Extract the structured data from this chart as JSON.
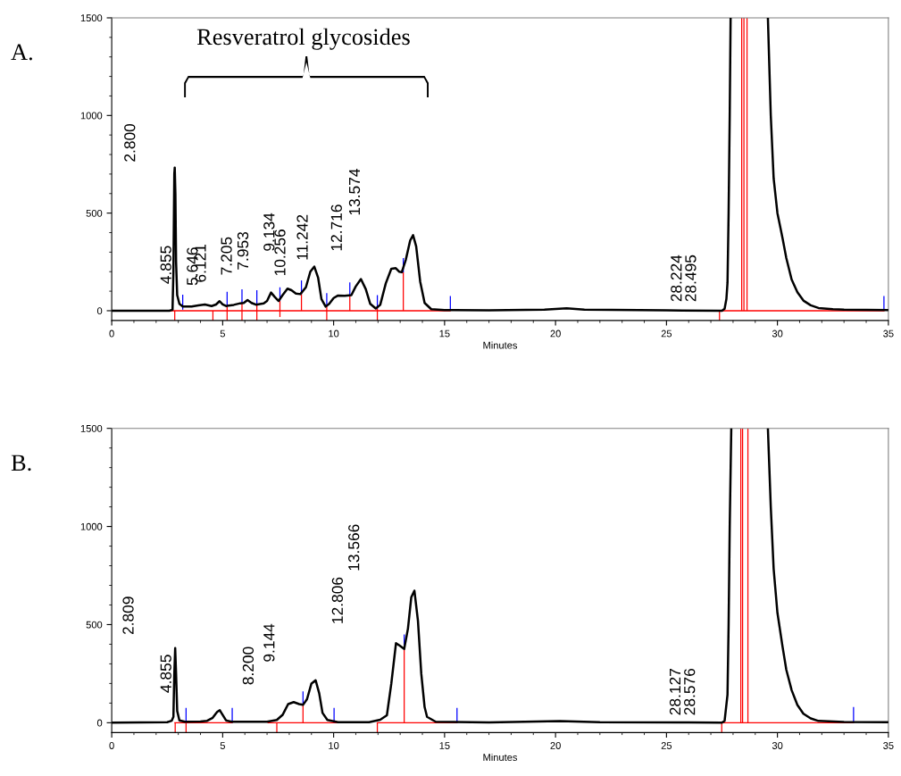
{
  "chart_data": [
    {
      "type": "line",
      "title": "A.",
      "xlabel": "Minutes",
      "xlim": [
        0,
        35
      ],
      "xticks": [
        0,
        5,
        10,
        15,
        20,
        25,
        30,
        35
      ],
      "ylim": [
        -50,
        1500
      ],
      "yticks": [
        0,
        500,
        1000,
        1500
      ],
      "grid": false,
      "legend": false,
      "marker": "none",
      "line_style": "solid",
      "series": [
        {
          "color": "#ff0000",
          "x": [
            2.0,
            15.25,
            null,
            27.39,
            34.8
          ],
          "values": [
            0,
            0,
            null,
            0,
            0
          ]
        },
        {
          "type": "bar",
          "color": "#ff0000",
          "x": [
            2.84,
            4.56,
            5.2,
            5.87,
            6.54,
            7.58,
            8.55,
            9.69,
            10.73,
            11.97,
            13.14,
            27.39,
            28.39,
            28.49,
            28.63
          ],
          "base": [
            -50,
            -50,
            -50,
            -50,
            -50,
            -32,
            0,
            -50,
            0,
            -50,
            0,
            -50,
            0,
            0,
            0
          ],
          "values": [
            50,
            50,
            71,
            88,
            85,
            82,
            85,
            71,
            76,
            61,
            197,
            50,
            1500,
            1500,
            1500
          ]
        },
        {
          "type": "bar",
          "color": "#0000ff",
          "x": [
            3.2,
            5.2,
            5.87,
            6.54,
            7.58,
            8.55,
            9.69,
            10.73,
            11.97,
            13.14,
            15.26,
            34.8
          ],
          "base": [
            6,
            21,
            38,
            35,
            50,
            85,
            21,
            76,
            11,
            197,
            0,
            0
          ],
          "values": [
            76,
            76,
            72,
            70,
            70,
            70,
            69,
            69,
            69,
            73,
            75,
            75
          ]
        },
        {
          "color": "#000000",
          "x": [
            0,
            2.6,
            2.74,
            2.78,
            2.82,
            2.84,
            2.87,
            2.9,
            2.95,
            3.05,
            3.2,
            3.6,
            3.9,
            4.2,
            4.5,
            4.7,
            4.86,
            5.0,
            5.15,
            5.5,
            5.79,
            5.95,
            6.12,
            6.3,
            6.5,
            6.85,
            7.0,
            7.18,
            7.35,
            7.52,
            7.7,
            7.92,
            8.1,
            8.3,
            8.5,
            8.75,
            8.95,
            9.13,
            9.3,
            9.45,
            9.64,
            9.8,
            10.0,
            10.2,
            10.5,
            10.8,
            11.0,
            11.23,
            11.45,
            11.65,
            11.9,
            12.1,
            12.35,
            12.6,
            12.8,
            12.95,
            13.07,
            13.25,
            13.45,
            13.58,
            13.72,
            13.9,
            14.1,
            14.4,
            15.0,
            17.0,
            19.5,
            20.5,
            21.3,
            25.0,
            27.5,
            27.62,
            27.7,
            27.75,
            27.8,
            27.85,
            27.89,
            28.5,
            29.57,
            29.7,
            29.83,
            30.0,
            30.23,
            30.4,
            30.64,
            30.9,
            31.17,
            31.5,
            31.85,
            32.5,
            33.0,
            34.0,
            35.0
          ],
          "values": [
            0,
            0,
            5,
            200,
            700,
            733,
            600,
            250,
            80,
            35,
            22,
            22,
            27,
            32,
            24,
            32,
            49,
            32,
            24,
            30,
            38,
            40,
            55,
            40,
            31,
            38,
            50,
            93,
            70,
            50,
            80,
            113,
            105,
            88,
            85,
            120,
            200,
            226,
            170,
            60,
            21,
            35,
            65,
            78,
            76,
            80,
            125,
            162,
            110,
            35,
            11,
            30,
            140,
            215,
            218,
            200,
            197,
            260,
            360,
            387,
            330,
            150,
            40,
            8,
            3,
            2,
            5,
            12,
            5,
            2,
            0,
            10,
            60,
            143,
            500,
            1000,
            1500,
            null,
            1500,
            1000,
            677,
            500,
            372,
            270,
            160,
            95,
            52,
            28,
            14,
            8,
            5,
            4,
            3
          ]
        }
      ],
      "annotations": [
        "2.800",
        "4.855",
        "5.646",
        "6.121",
        "7.205",
        "7.953",
        "9.134",
        "10.256",
        "11.242",
        "12.716",
        "13.574",
        "28.224",
        "28.495",
        "Resveratrol glycosides"
      ]
    },
    {
      "type": "line",
      "title": "B.",
      "xlabel": "Minutes",
      "xlim": [
        0,
        35
      ],
      "xticks": [
        0,
        5,
        10,
        15,
        20,
        25,
        30,
        35
      ],
      "ylim": [
        -50,
        1500
      ],
      "yticks": [
        0,
        500,
        1000,
        1500
      ],
      "grid": false,
      "legend": false,
      "marker": "none",
      "line_style": "solid",
      "series": [
        {
          "color": "#ff0000",
          "x": [
            2.85,
            5.43,
            null,
            7.05,
            11.0,
            null,
            11.97,
            15.56,
            null,
            27.49,
            33.43
          ],
          "values": [
            0,
            0,
            null,
            0,
            0,
            null,
            0,
            0,
            null,
            0,
            0
          ]
        },
        {
          "type": "bar",
          "color": "#ff0000",
          "x": [
            2.86,
            3.35,
            7.44,
            8.62,
            11.97,
            13.18,
            27.49,
            28.35,
            28.43,
            28.67
          ],
          "base": [
            -50,
            -50,
            -50,
            0,
            -50,
            0,
            -50,
            0,
            0,
            0
          ],
          "values": [
            50,
            50,
            50,
            91,
            50,
            376,
            50,
            1500,
            1500,
            1500
          ]
        },
        {
          "type": "bar",
          "color": "#0000ff",
          "x": [
            3.35,
            5.43,
            8.62,
            10.02,
            13.18,
            15.56,
            33.43
          ],
          "base": [
            0,
            0,
            91,
            0,
            376,
            0,
            0
          ],
          "values": [
            75,
            75,
            69,
            75,
            74,
            75,
            80
          ]
        },
        {
          "color": "#000000",
          "x": [
            0,
            2.5,
            2.7,
            2.78,
            2.82,
            2.86,
            2.9,
            2.95,
            3.05,
            3.3,
            4.0,
            4.3,
            4.55,
            4.75,
            4.87,
            5.0,
            5.15,
            5.4,
            7.0,
            7.44,
            7.7,
            7.95,
            8.2,
            8.45,
            8.62,
            8.8,
            9.0,
            9.19,
            9.35,
            9.5,
            9.72,
            10.2,
            11.6,
            12.1,
            12.4,
            12.6,
            12.81,
            12.95,
            13.18,
            13.35,
            13.5,
            13.64,
            13.8,
            13.95,
            14.1,
            14.21,
            14.6,
            17.0,
            20.2,
            22.0,
            26.0,
            27.5,
            27.62,
            27.75,
            27.8,
            27.85,
            27.92,
            28.5,
            29.57,
            29.7,
            29.83,
            30.0,
            30.23,
            30.4,
            30.64,
            30.9,
            31.17,
            31.5,
            31.85,
            33.0,
            35.0
          ],
          "values": [
            0,
            3,
            10,
            30,
            250,
            380,
            250,
            60,
            12,
            5,
            6,
            10,
            25,
            55,
            64,
            40,
            12,
            5,
            5,
            14,
            40,
            95,
            105,
            95,
            91,
            120,
            200,
            216,
            150,
            50,
            14,
            3,
            3,
            15,
            38,
            200,
            405,
            395,
            376,
            480,
            640,
            673,
            520,
            250,
            80,
            30,
            5,
            2,
            8,
            3,
            2,
            0,
            10,
            143,
            500,
            1000,
            1500,
            null,
            1500,
            1100,
            783,
            560,
            388,
            270,
            166,
            90,
            46,
            22,
            9,
            4,
            3
          ]
        }
      ],
      "annotations": [
        "2.809",
        "4.855",
        "8.200",
        "9.144",
        "12.806",
        "13.566",
        "28.127",
        "28.576"
      ]
    }
  ]
}
